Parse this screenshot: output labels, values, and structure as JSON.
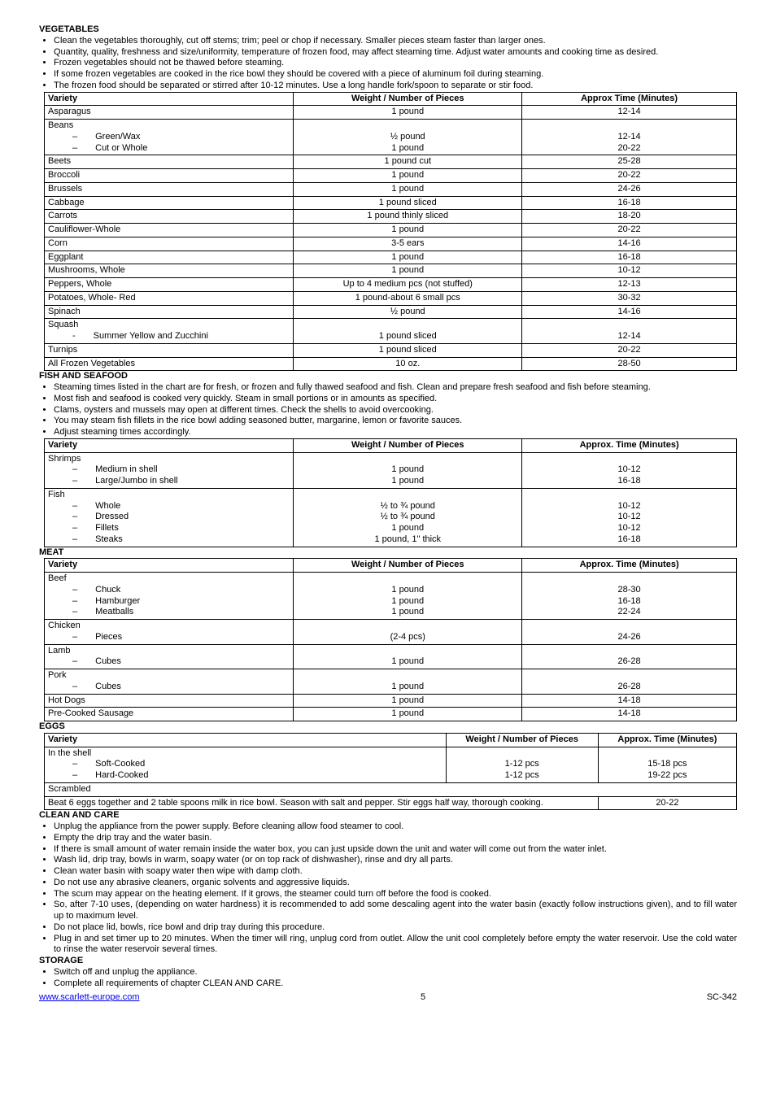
{
  "vegetables": {
    "title": "VEGETABLES",
    "bullets": [
      "Clean the vegetables thoroughly, cut off stems; trim; peel or chop if necessary. Smaller pieces steam faster than larger ones.",
      "Quantity, quality, freshness and size/uniformity, temperature of frozen food, may affect steaming time. Adjust water amounts and cooking time as desired.",
      "Frozen vegetables should not be thawed before steaming.",
      "If some frozen vegetables are cooked in the rice bowl they should be covered with a piece of aluminum foil during steaming.",
      "The frozen food should be separated or stirred after 10-12 minutes. Use a long handle fork/spoon to separate or stir food."
    ],
    "headers": [
      "Variety",
      "Weight / Number of Pieces",
      "Approx Time (Minutes)"
    ],
    "rows": [
      {
        "v": "Asparagus",
        "w": "1 pound",
        "t": "12-14"
      },
      {
        "v": "Beans",
        "w": "",
        "t": ""
      },
      {
        "v": "Green/Wax",
        "w": "½ pound",
        "t": "12-14",
        "sub": true
      },
      {
        "v": "Cut or Whole",
        "w": "1 pound",
        "t": "20-22",
        "sub": true
      },
      {
        "v": "Beets",
        "w": "1 pound cut",
        "t": "25-28"
      },
      {
        "v": "Broccoli",
        "w": "1 pound",
        "t": "20-22"
      },
      {
        "v": "Brussels",
        "w": "1 pound",
        "t": "24-26"
      },
      {
        "v": "Cabbage",
        "w": "1 pound sliced",
        "t": "16-18"
      },
      {
        "v": "Carrots",
        "w": "1 pound thinly sliced",
        "t": "18-20"
      },
      {
        "v": "Cauliflower-Whole",
        "w": "1 pound",
        "t": "20-22"
      },
      {
        "v": "Corn",
        "w": "3-5 ears",
        "t": "14-16"
      },
      {
        "v": "Eggplant",
        "w": "1 pound",
        "t": "16-18"
      },
      {
        "v": "Mushrooms, Whole",
        "w": "1 pound",
        "t": "10-12"
      },
      {
        "v": "Peppers, Whole",
        "w": "Up to 4 medium pcs (not stuffed)",
        "t": "12-13"
      },
      {
        "v": "Potatoes, Whole- Red",
        "w": "1 pound-about 6 small pcs",
        "t": "30-32"
      },
      {
        "v": "Spinach",
        "w": "½ pound",
        "t": "14-16"
      },
      {
        "v": "Squash",
        "w": "",
        "t": ""
      },
      {
        "v": "Summer Yellow and Zucchini",
        "w": "1 pound sliced",
        "t": "12-14",
        "sub2": true
      },
      {
        "v": "Turnips",
        "w": "1 pound sliced",
        "t": "20-22"
      },
      {
        "v": "All Frozen Vegetables",
        "w": "10 oz.",
        "t": "28-50"
      }
    ]
  },
  "fish": {
    "title": "FISH AND SEAFOOD",
    "bullets": [
      "Steaming times listed in the chart are for fresh, or frozen and fully thawed seafood and fish. Clean and prepare fresh seafood and fish before steaming.",
      "Most fish and seafood is cooked very quickly. Steam in small portions or in amounts as specified.",
      "Clams, oysters and mussels may open at different times. Check the shells to avoid overcooking.",
      "You may steam fish fillets in the rice bowl adding seasoned butter, margarine, lemon or favorite sauces.",
      "Adjust steaming times accordingly."
    ],
    "headers": [
      "Variety",
      "Weight / Number of Pieces",
      "Approx. Time (Minutes)"
    ],
    "rows": [
      {
        "v": "Shrimps",
        "w": "",
        "t": ""
      },
      {
        "v": "Medium in shell",
        "w": "1 pound",
        "t": "10-12",
        "sub": true
      },
      {
        "v": "Large/Jumbo in shell",
        "w": "1 pound",
        "t": "16-18",
        "sub": true
      },
      {
        "v": "Fish",
        "w": "",
        "t": ""
      },
      {
        "v": "Whole",
        "w": "½ to ¾ pound",
        "t": "10-12",
        "sub": true
      },
      {
        "v": "Dressed",
        "w": "½ to ¾ pound",
        "t": "10-12",
        "sub": true
      },
      {
        "v": "Fillets",
        "w": "1 pound",
        "t": "10-12",
        "sub": true
      },
      {
        "v": "Steaks",
        "w": "1 pound, 1\" thick",
        "t": "16-18",
        "sub": true
      }
    ]
  },
  "meat": {
    "title": "MEAT",
    "headers": [
      "Variety",
      "Weight / Number of Pieces",
      "Approx. Time (Minutes)"
    ],
    "rows": [
      {
        "v": "Beef",
        "w": "",
        "t": ""
      },
      {
        "v": "Chuck",
        "w": "1 pound",
        "t": "28-30",
        "sub": true
      },
      {
        "v": "Hamburger",
        "w": "1 pound",
        "t": "16-18",
        "sub": true
      },
      {
        "v": "Meatballs",
        "w": "1 pound",
        "t": "22-24",
        "sub": true
      },
      {
        "v": "Chicken",
        "w": "",
        "t": ""
      },
      {
        "v": "Pieces",
        "w": "(2-4 pcs)",
        "t": "24-26",
        "sub": true
      },
      {
        "v": "Lamb",
        "w": "",
        "t": ""
      },
      {
        "v": "Cubes",
        "w": "1 pound",
        "t": "26-28",
        "sub": true
      },
      {
        "v": "Pork",
        "w": "",
        "t": ""
      },
      {
        "v": "Cubes",
        "w": "1 pound",
        "t": "26-28",
        "sub": true
      },
      {
        "v": "Hot Dogs",
        "w": "1 pound",
        "t": "14-18"
      },
      {
        "v": "Pre-Cooked Sausage",
        "w": "1 pound",
        "t": "14-18"
      }
    ]
  },
  "eggs": {
    "title": "EGGS",
    "headers": [
      "Variety",
      "Weight /  Number of Pieces",
      "Approx. Time (Minutes)"
    ],
    "rows": [
      {
        "v": "In the shell",
        "w": "",
        "t": ""
      },
      {
        "v": "Soft-Cooked",
        "w": "1-12 pcs",
        "t": "15-18 pcs",
        "sub": true
      },
      {
        "v": "Hard-Cooked",
        "w": "1-12 pcs",
        "t": "19-22 pcs",
        "sub": true
      },
      {
        "v": "Scrambled",
        "w": "",
        "t": ""
      }
    ],
    "scrambled_text": "Beat 6 eggs together and 2 table spoons milk in rice bowl. Season with salt and pepper. Stir eggs half way, thorough cooking.",
    "scrambled_time": "20-22"
  },
  "clean": {
    "title": "CLEAN AND CARE",
    "bullets": [
      "Unplug the appliance from the power supply. Before cleaning allow food steamer to cool.",
      "Empty the drip tray and the water basin.",
      "If there is small amount of water remain inside the water box, you can just upside down the unit and water will come out from the water inlet.",
      "Wash lid, drip tray, bowls in warm, soapy water (or on top rack of dishwasher), rinse and dry all parts.",
      "Clean water basin with soapy water then wipe with damp cloth.",
      "Do not use any abrasive cleaners, organic solvents and aggressive liquids.",
      "The scum may appear on the heating element. If it grows, the steamer could turn off before the food is cooked.",
      "So, after 7-10 uses, (depending on water hardness) it is recommended to add some descaling agent into the water basin (exactly follow instructions given), and to fill water up to maximum level.",
      "Do not place lid, bowls, rice bowl and drip tray during this procedure.",
      "Plug in and set timer up to 20 minutes. When the timer will ring, unplug cord from outlet. Allow the unit cool completely before empty the water reservoir. Use the cold water to rinse the water reservoir several times."
    ]
  },
  "storage": {
    "title": "STORAGE",
    "bullets": [
      "Switch off and unplug the appliance.",
      "Complete all requirements of chapter CLEAN AND CARE."
    ]
  },
  "footer": {
    "url": "www.scarlett-europe.com",
    "page": "5",
    "model": "SC-342"
  },
  "col_widths": {
    "veg": [
      36,
      33,
      31
    ],
    "fish": [
      36,
      33,
      31
    ],
    "meat": [
      36,
      33,
      31
    ],
    "eggs": [
      58,
      22,
      20
    ]
  }
}
